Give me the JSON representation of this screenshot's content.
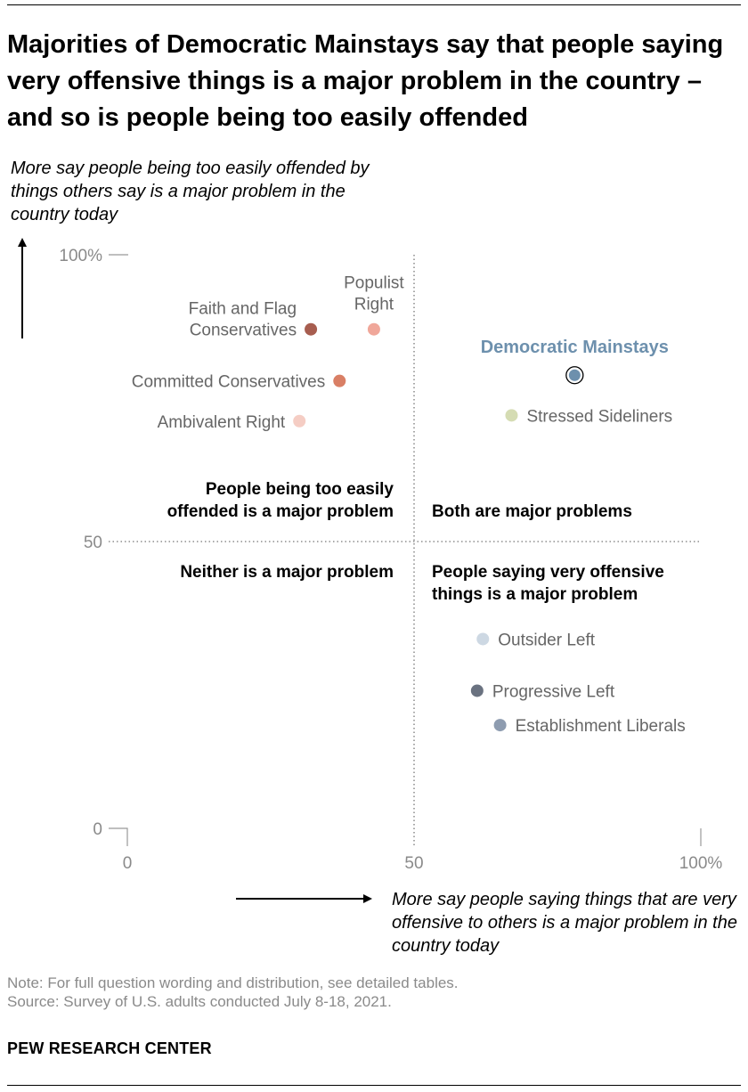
{
  "title": "Majorities of Democratic Mainstays say that people saying very offensive things is a major problem in the country – and so is people being too easily offended",
  "y_axis_note": "More say people being too easily offended by things others say is a major problem in the country today",
  "x_axis_note": "More say people saying things that are very offensive to others is a major problem in the country today",
  "note": "Note: For full question wording and distribution, see detailed tables.",
  "source": "Source: Survey of U.S. adults conducted July 8-18, 2021.",
  "brand": "PEW RESEARCH CENTER",
  "quadrants": {
    "top_left": [
      "People being too easily",
      "offended is a major problem"
    ],
    "top_right": [
      "Both are major problems"
    ],
    "bottom_left": [
      "Neither is a major problem"
    ],
    "bottom_right": [
      "People saying very offensive",
      "things is a major problem"
    ]
  },
  "chart_data": {
    "type": "scatter",
    "xlabel": "More say people saying things that are very offensive to others is a major problem in the country today",
    "ylabel": "More say people being too easily offended by things others say is a major problem in the country today",
    "xlim": [
      0,
      100
    ],
    "ylim": [
      0,
      100
    ],
    "x_ticks": [
      "0",
      "50",
      "100%"
    ],
    "y_ticks": [
      "0",
      "50",
      "100%"
    ],
    "reference_lines": {
      "x": 50,
      "y": 50
    },
    "points": [
      {
        "name": "Faith and Flag Conservatives",
        "label_lines": [
          "Faith and Flag",
          "Conservatives"
        ],
        "x": 32,
        "y": 87,
        "color": "#a75d4f",
        "label_side": "left"
      },
      {
        "name": "Populist Right",
        "label_lines": [
          "Populist",
          "Right"
        ],
        "x": 43,
        "y": 87,
        "color": "#f0a79a",
        "label_side": "above"
      },
      {
        "name": "Committed Conservatives",
        "label_lines": [
          "Committed Conservatives"
        ],
        "x": 37,
        "y": 78,
        "color": "#d97f65",
        "label_side": "left"
      },
      {
        "name": "Ambivalent Right",
        "label_lines": [
          "Ambivalent Right"
        ],
        "x": 30,
        "y": 71,
        "color": "#f5cdc4",
        "label_side": "left"
      },
      {
        "name": "Democratic Mainstays",
        "label_lines": [
          "Democratic Mainstays"
        ],
        "x": 78,
        "y": 79,
        "color": "#6d90ad",
        "label_side": "above",
        "highlight": true
      },
      {
        "name": "Stressed Sideliners",
        "label_lines": [
          "Stressed Sideliners"
        ],
        "x": 67,
        "y": 72,
        "color": "#d5dcb3",
        "label_side": "right"
      },
      {
        "name": "Outsider Left",
        "label_lines": [
          "Outsider Left"
        ],
        "x": 62,
        "y": 33,
        "color": "#cdd8e3",
        "label_side": "right"
      },
      {
        "name": "Progressive Left",
        "label_lines": [
          "Progressive Left"
        ],
        "x": 61,
        "y": 24,
        "color": "#6a7280",
        "label_side": "right"
      },
      {
        "name": "Establishment Liberals",
        "label_lines": [
          "Establishment Liberals"
        ],
        "x": 65,
        "y": 18,
        "color": "#8e9cb0",
        "label_side": "right"
      }
    ]
  }
}
